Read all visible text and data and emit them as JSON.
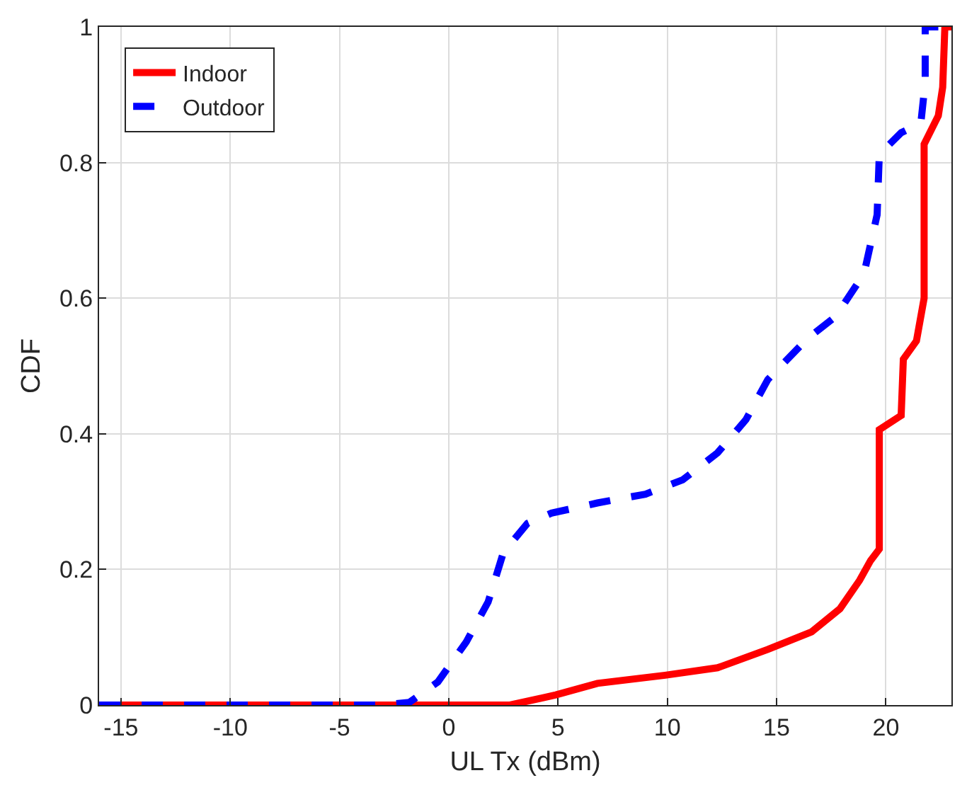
{
  "chart_data": {
    "type": "line",
    "xlabel": "UL Tx (dBm)",
    "ylabel": "CDF",
    "xlim": [
      -16,
      23
    ],
    "ylim": [
      0,
      1
    ],
    "xticks": [
      -15,
      -10,
      -5,
      0,
      5,
      10,
      15,
      20
    ],
    "yticks": [
      0,
      0.2,
      0.4,
      0.6,
      0.8,
      1
    ],
    "grid": true,
    "legend": "top left",
    "series": [
      {
        "name": "Indoor",
        "color": "#ff0000",
        "line_style": "solid",
        "x": [
          -16,
          2.8,
          4.9,
          6.8,
          9.9,
          12.3,
          14.6,
          16.6,
          17.9,
          18.8,
          19.3,
          19.7,
          19.7,
          20.7,
          20.8,
          21.4,
          21.75,
          21.75,
          22.4,
          22.6,
          22.7,
          23
        ],
        "values": [
          0,
          0,
          0.015,
          0.032,
          0.044,
          0.055,
          0.082,
          0.108,
          0.142,
          0.184,
          0.213,
          0.23,
          0.406,
          0.427,
          0.51,
          0.537,
          0.6,
          0.827,
          0.869,
          0.911,
          1,
          1
        ]
      },
      {
        "name": "Outdoor",
        "color": "#0000ff",
        "line_style": "dashed",
        "x": [
          -16,
          -3.1,
          -1.8,
          -0.5,
          0.8,
          1.8,
          2.5,
          3.6,
          4.7,
          6.8,
          9.0,
          10.7,
          12.3,
          13.6,
          14.6,
          16.4,
          17.7,
          19.0,
          19.6,
          19.7,
          20.7,
          21.6,
          21.8,
          21.8,
          22.4
        ],
        "values": [
          0,
          0,
          0.004,
          0.034,
          0.093,
          0.152,
          0.225,
          0.268,
          0.283,
          0.298,
          0.311,
          0.332,
          0.372,
          0.421,
          0.48,
          0.54,
          0.573,
          0.636,
          0.723,
          0.812,
          0.844,
          0.858,
          0.918,
          1,
          1
        ]
      }
    ]
  }
}
